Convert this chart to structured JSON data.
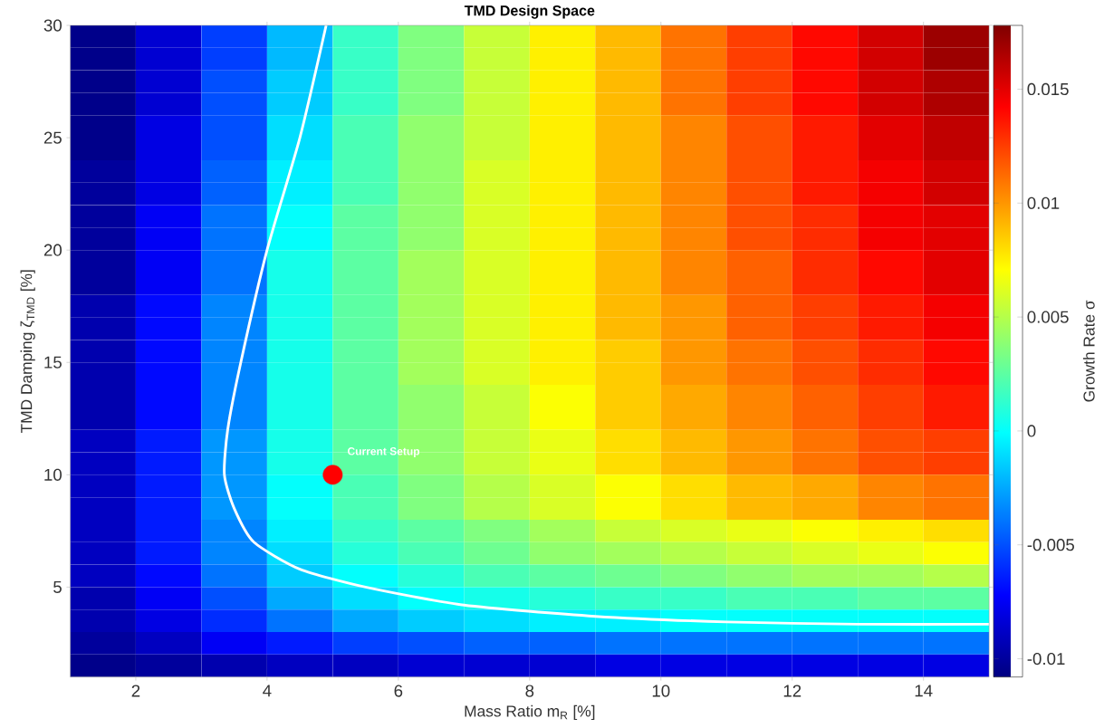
{
  "chart_data": {
    "type": "heatmap",
    "title": "TMD Design Space",
    "xlabel": "Mass Ratio m$_{R}$ [%]",
    "ylabel": "TMD Damping ζ$_{TMD}$ [%]",
    "clabel": "Growth Rate σ",
    "xlim": [
      1,
      15
    ],
    "ylim": [
      1,
      30
    ],
    "xticks": [
      2,
      4,
      6,
      8,
      10,
      12,
      14
    ],
    "yticks": [
      5,
      10,
      15,
      20,
      25,
      30
    ],
    "clim": [
      -0.0108,
      0.0178
    ],
    "cticks": [
      -0.01,
      -0.005,
      0,
      0.005,
      0.01,
      0.015
    ],
    "x": [
      1.5,
      2.5,
      3.5,
      4.5,
      5.5,
      6.5,
      7.5,
      8.5,
      9.5,
      10.5,
      11.5,
      12.5,
      13.5,
      14.5
    ],
    "y": [
      29.5,
      28.5,
      27.5,
      26.5,
      25.5,
      24.5,
      23.5,
      22.5,
      21.5,
      20.5,
      19.5,
      18.5,
      17.5,
      16.5,
      15.5,
      14.5,
      13.5,
      12.5,
      11.5,
      10.5,
      9.5,
      8.5,
      7.5,
      6.5,
      5.5,
      4.5,
      3.5,
      2.5,
      1.5
    ],
    "cells": [
      [
        -0.0105,
        -0.0085,
        -0.0055,
        -0.002,
        0.0015,
        0.0035,
        0.0055,
        0.0075,
        0.009,
        0.011,
        0.0125,
        0.014,
        0.0155,
        0.017
      ],
      [
        -0.0105,
        -0.0085,
        -0.0055,
        -0.002,
        0.0015,
        0.0035,
        0.0055,
        0.0075,
        0.009,
        0.011,
        0.0125,
        0.014,
        0.0155,
        0.017
      ],
      [
        -0.0105,
        -0.0085,
        -0.005,
        -0.0015,
        0.0015,
        0.0035,
        0.0055,
        0.0075,
        0.009,
        0.011,
        0.0125,
        0.014,
        0.0155,
        0.0165
      ],
      [
        -0.0105,
        -0.0085,
        -0.005,
        -0.0015,
        0.0015,
        0.0035,
        0.0055,
        0.0075,
        0.009,
        0.011,
        0.0125,
        0.014,
        0.0155,
        0.0165
      ],
      [
        -0.0105,
        -0.008,
        -0.005,
        -0.001,
        0.002,
        0.004,
        0.0055,
        0.0075,
        0.009,
        0.0105,
        0.012,
        0.0135,
        0.015,
        0.016
      ],
      [
        -0.0105,
        -0.008,
        -0.005,
        -0.001,
        0.002,
        0.004,
        0.0055,
        0.0075,
        0.009,
        0.0105,
        0.012,
        0.0135,
        0.015,
        0.016
      ],
      [
        -0.01,
        -0.008,
        -0.0045,
        -0.0005,
        0.002,
        0.004,
        0.006,
        0.0075,
        0.009,
        0.0105,
        0.012,
        0.0135,
        0.0145,
        0.0155
      ],
      [
        -0.01,
        -0.008,
        -0.0045,
        -0.0005,
        0.002,
        0.004,
        0.006,
        0.0075,
        0.009,
        0.0105,
        0.012,
        0.0135,
        0.0145,
        0.0155
      ],
      [
        -0.01,
        -0.0075,
        -0.004,
        0,
        0.0025,
        0.004,
        0.006,
        0.0075,
        0.009,
        0.0105,
        0.012,
        0.013,
        0.0145,
        0.015
      ],
      [
        -0.01,
        -0.0075,
        -0.004,
        0,
        0.0025,
        0.004,
        0.006,
        0.0075,
        0.009,
        0.0105,
        0.012,
        0.013,
        0.0145,
        0.015
      ],
      [
        -0.01,
        -0.0075,
        -0.004,
        0.0005,
        0.0025,
        0.0045,
        0.006,
        0.0075,
        0.009,
        0.0105,
        0.0115,
        0.013,
        0.014,
        0.015
      ],
      [
        -0.01,
        -0.0075,
        -0.004,
        0.0005,
        0.0025,
        0.0045,
        0.006,
        0.0075,
        0.009,
        0.0105,
        0.0115,
        0.013,
        0.014,
        0.015
      ],
      [
        -0.0095,
        -0.007,
        -0.0035,
        0.0005,
        0.0025,
        0.0045,
        0.006,
        0.0075,
        0.009,
        0.01,
        0.0115,
        0.0125,
        0.0135,
        0.0145
      ],
      [
        -0.0095,
        -0.007,
        -0.0035,
        0.0005,
        0.0025,
        0.0045,
        0.006,
        0.0075,
        0.009,
        0.01,
        0.0115,
        0.0125,
        0.0135,
        0.0145
      ],
      [
        -0.0095,
        -0.007,
        -0.0035,
        0.0005,
        0.0025,
        0.0045,
        0.006,
        0.0075,
        0.0085,
        0.01,
        0.011,
        0.012,
        0.013,
        0.014
      ],
      [
        -0.0095,
        -0.007,
        -0.0035,
        0.0005,
        0.0025,
        0.0045,
        0.006,
        0.0075,
        0.0085,
        0.01,
        0.011,
        0.012,
        0.013,
        0.014
      ],
      [
        -0.0095,
        -0.007,
        -0.0035,
        0.0005,
        0.0025,
        0.004,
        0.0055,
        0.007,
        0.0085,
        0.0095,
        0.0105,
        0.0115,
        0.0125,
        0.0135
      ],
      [
        -0.0095,
        -0.007,
        -0.0035,
        0.0005,
        0.0025,
        0.004,
        0.0055,
        0.007,
        0.0085,
        0.0095,
        0.0105,
        0.0115,
        0.0125,
        0.0135
      ],
      [
        -0.009,
        -0.0065,
        -0.003,
        0.0005,
        0.0025,
        0.004,
        0.0055,
        0.0065,
        0.008,
        0.009,
        0.01,
        0.011,
        0.012,
        0.0125
      ],
      [
        -0.009,
        -0.0065,
        -0.003,
        0.0005,
        0.0025,
        0.004,
        0.0055,
        0.0065,
        0.008,
        0.009,
        0.01,
        0.011,
        0.012,
        0.0125
      ],
      [
        -0.009,
        -0.0065,
        -0.003,
        0,
        0.002,
        0.0035,
        0.005,
        0.006,
        0.007,
        0.008,
        0.009,
        0.0095,
        0.0105,
        0.011
      ],
      [
        -0.009,
        -0.0065,
        -0.003,
        0,
        0.002,
        0.0035,
        0.005,
        0.006,
        0.007,
        0.008,
        0.009,
        0.0095,
        0.0105,
        0.011
      ],
      [
        -0.009,
        -0.0065,
        -0.0035,
        -0.0005,
        0.0015,
        0.0025,
        0.0035,
        0.0045,
        0.0055,
        0.006,
        0.0065,
        0.007,
        0.0075,
        0.008
      ],
      [
        -0.009,
        -0.0065,
        -0.0035,
        -0.001,
        0.001,
        0.002,
        0.003,
        0.004,
        0.0045,
        0.005,
        0.0055,
        0.006,
        0.0065,
        0.007
      ],
      [
        -0.009,
        -0.007,
        -0.004,
        -0.0015,
        0,
        0.001,
        0.002,
        0.0025,
        0.003,
        0.0035,
        0.004,
        0.0045,
        0.0045,
        0.005
      ],
      [
        -0.0095,
        -0.0075,
        -0.005,
        -0.0025,
        -0.001,
        0,
        0.0005,
        0.001,
        0.0015,
        0.0015,
        0.002,
        0.002,
        0.0025,
        0.0025
      ],
      [
        -0.0095,
        -0.008,
        -0.006,
        -0.004,
        -0.0025,
        -0.0015,
        -0.001,
        -0.0005,
        -0.0005,
        0,
        0,
        0,
        0,
        0
      ],
      [
        -0.01,
        -0.009,
        -0.0075,
        -0.0065,
        -0.0055,
        -0.005,
        -0.0045,
        -0.0045,
        -0.004,
        -0.004,
        -0.004,
        -0.004,
        -0.004,
        -0.004
      ],
      [
        -0.0105,
        -0.01,
        -0.0095,
        -0.009,
        -0.009,
        -0.0085,
        -0.0085,
        -0.0085,
        -0.008,
        -0.008,
        -0.008,
        -0.008,
        -0.008,
        -0.008
      ]
    ],
    "series": [
      {
        "type": "line",
        "color": "#ffffff",
        "x": [
          4.9,
          4.5,
          4.0,
          3.6,
          3.4,
          3.35,
          3.5,
          3.8,
          4.5,
          5.5,
          7,
          9,
          11,
          13,
          15
        ],
        "values": [
          30,
          25,
          20,
          15,
          12,
          10,
          8.5,
          7,
          5.8,
          5,
          4.2,
          3.7,
          3.45,
          3.35,
          3.35
        ]
      },
      {
        "type": "scatter",
        "color": "#ff0000",
        "marker": "circle",
        "x": [
          5
        ],
        "values": [
          10
        ]
      }
    ],
    "annotations": [
      "Current Setup"
    ],
    "grid": false
  }
}
